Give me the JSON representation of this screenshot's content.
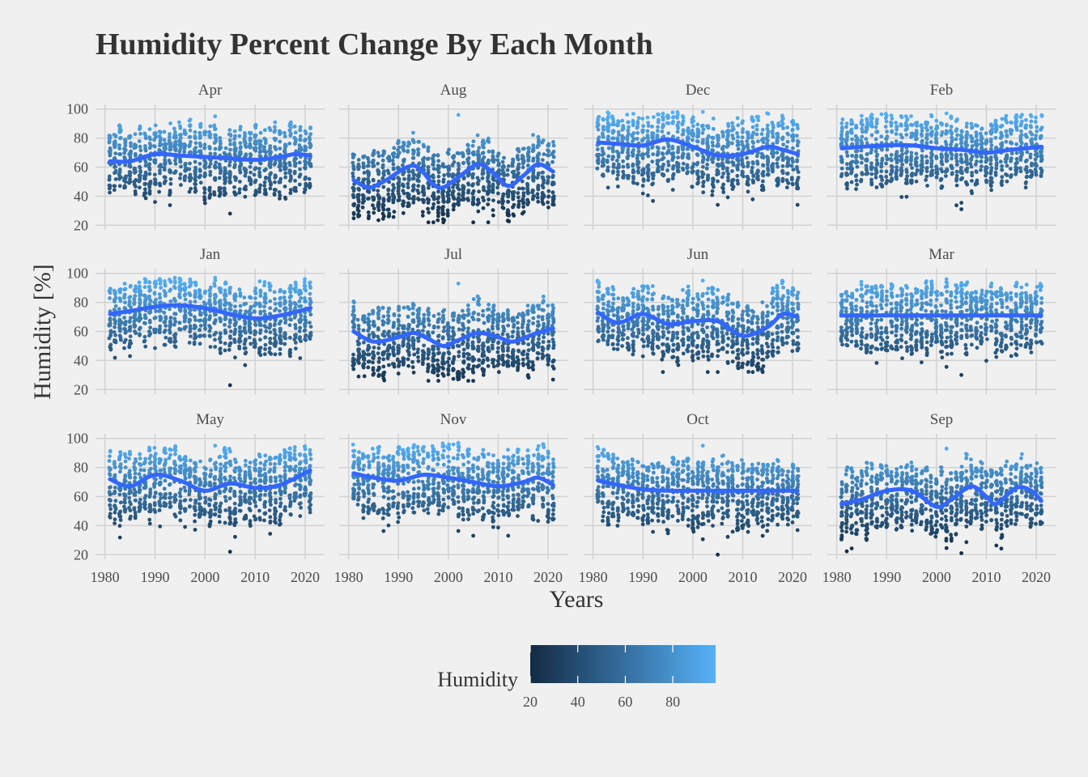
{
  "chart_data": {
    "type": "scatter",
    "title": "Humidity Percent Change By Each Month",
    "xlabel": "Years",
    "ylabel": "Humidity [%]",
    "xlim": [
      1980,
      2022
    ],
    "ylim": [
      20,
      100
    ],
    "x_ticks": [
      "1980",
      "1990",
      "2000",
      "2010",
      "2020"
    ],
    "y_ticks": [
      "20",
      "40",
      "60",
      "80",
      "100"
    ],
    "legend": {
      "title": "Humidity",
      "position": "bottom",
      "ticks": [
        "20",
        "40",
        "60",
        "80"
      ],
      "color_low": "#132B43",
      "color_high": "#56B1F7"
    },
    "trend_color": "#3366FF",
    "grid": true,
    "panels": [
      {
        "name": "Apr",
        "ymin": 28,
        "ymax": 95,
        "trend": [
          [
            1981,
            64
          ],
          [
            1985,
            64
          ],
          [
            1990,
            69
          ],
          [
            1995,
            68
          ],
          [
            2000,
            67
          ],
          [
            2005,
            66
          ],
          [
            2010,
            65
          ],
          [
            2015,
            67
          ],
          [
            2018,
            69
          ],
          [
            2021,
            68
          ]
        ]
      },
      {
        "name": "Aug",
        "ymin": 22,
        "ymax": 96,
        "trend": [
          [
            1981,
            51
          ],
          [
            1984,
            46
          ],
          [
            1987,
            50
          ],
          [
            1993,
            61
          ],
          [
            1997,
            48
          ],
          [
            1999,
            46
          ],
          [
            2002,
            53
          ],
          [
            2006,
            62
          ],
          [
            2009,
            56
          ],
          [
            2012,
            47
          ],
          [
            2015,
            54
          ],
          [
            2018,
            62
          ],
          [
            2021,
            57
          ]
        ]
      },
      {
        "name": "Dec",
        "ymin": 34,
        "ymax": 98,
        "trend": [
          [
            1981,
            77
          ],
          [
            1985,
            76
          ],
          [
            1990,
            75
          ],
          [
            1995,
            79
          ],
          [
            2000,
            74
          ],
          [
            2005,
            68
          ],
          [
            2010,
            69
          ],
          [
            2015,
            74
          ],
          [
            2018,
            72
          ],
          [
            2021,
            69
          ]
        ]
      },
      {
        "name": "Feb",
        "ymin": 31,
        "ymax": 97,
        "trend": [
          [
            1981,
            73
          ],
          [
            1985,
            74
          ],
          [
            1990,
            75
          ],
          [
            1995,
            75
          ],
          [
            2000,
            73
          ],
          [
            2005,
            72
          ],
          [
            2010,
            70
          ],
          [
            2015,
            72
          ],
          [
            2021,
            74
          ]
        ]
      },
      {
        "name": "Jan",
        "ymin": 23,
        "ymax": 97,
        "trend": [
          [
            1981,
            72
          ],
          [
            1985,
            74
          ],
          [
            1990,
            77
          ],
          [
            1995,
            78
          ],
          [
            2000,
            76
          ],
          [
            2005,
            72
          ],
          [
            2010,
            69
          ],
          [
            2015,
            71
          ],
          [
            2021,
            76
          ]
        ]
      },
      {
        "name": "Jul",
        "ymin": 26,
        "ymax": 93,
        "trend": [
          [
            1981,
            60
          ],
          [
            1985,
            53
          ],
          [
            1990,
            56
          ],
          [
            1993,
            59
          ],
          [
            1996,
            55
          ],
          [
            1999,
            50
          ],
          [
            2002,
            54
          ],
          [
            2006,
            59
          ],
          [
            2010,
            56
          ],
          [
            2013,
            53
          ],
          [
            2017,
            58
          ],
          [
            2021,
            62
          ]
        ]
      },
      {
        "name": "Jun",
        "ymin": 32,
        "ymax": 95,
        "trend": [
          [
            1981,
            73
          ],
          [
            1985,
            66
          ],
          [
            1990,
            72
          ],
          [
            1995,
            65
          ],
          [
            2000,
            67
          ],
          [
            2005,
            67
          ],
          [
            2010,
            57
          ],
          [
            2015,
            63
          ],
          [
            2018,
            72
          ],
          [
            2021,
            70
          ]
        ]
      },
      {
        "name": "Mar",
        "ymin": 30,
        "ymax": 96,
        "trend": [
          [
            1981,
            71
          ],
          [
            2021,
            71
          ]
        ]
      },
      {
        "name": "May",
        "ymin": 22,
        "ymax": 95,
        "trend": [
          [
            1981,
            72
          ],
          [
            1985,
            67
          ],
          [
            1990,
            75
          ],
          [
            1995,
            71
          ],
          [
            2000,
            64
          ],
          [
            2005,
            69
          ],
          [
            2010,
            66
          ],
          [
            2015,
            68
          ],
          [
            2021,
            78
          ]
        ]
      },
      {
        "name": "Nov",
        "ymin": 33,
        "ymax": 97,
        "trend": [
          [
            1981,
            76
          ],
          [
            1985,
            73
          ],
          [
            1990,
            71
          ],
          [
            1995,
            75
          ],
          [
            2000,
            73
          ],
          [
            2005,
            70
          ],
          [
            2010,
            67
          ],
          [
            2015,
            70
          ],
          [
            2018,
            73
          ],
          [
            2021,
            68
          ]
        ]
      },
      {
        "name": "Oct",
        "ymin": 20,
        "ymax": 95,
        "trend": [
          [
            1981,
            71
          ],
          [
            1985,
            68
          ],
          [
            1990,
            65
          ],
          [
            1995,
            64
          ],
          [
            2000,
            64
          ],
          [
            2005,
            64
          ],
          [
            2010,
            64
          ],
          [
            2015,
            64
          ],
          [
            2021,
            64
          ]
        ]
      },
      {
        "name": "Sep",
        "ymin": 21,
        "ymax": 93,
        "trend": [
          [
            1981,
            55
          ],
          [
            1985,
            58
          ],
          [
            1990,
            64
          ],
          [
            1995,
            64
          ],
          [
            2000,
            53
          ],
          [
            2003,
            58
          ],
          [
            2007,
            67
          ],
          [
            2010,
            60
          ],
          [
            2012,
            55
          ],
          [
            2016,
            66
          ],
          [
            2019,
            64
          ],
          [
            2021,
            57
          ]
        ]
      }
    ]
  }
}
